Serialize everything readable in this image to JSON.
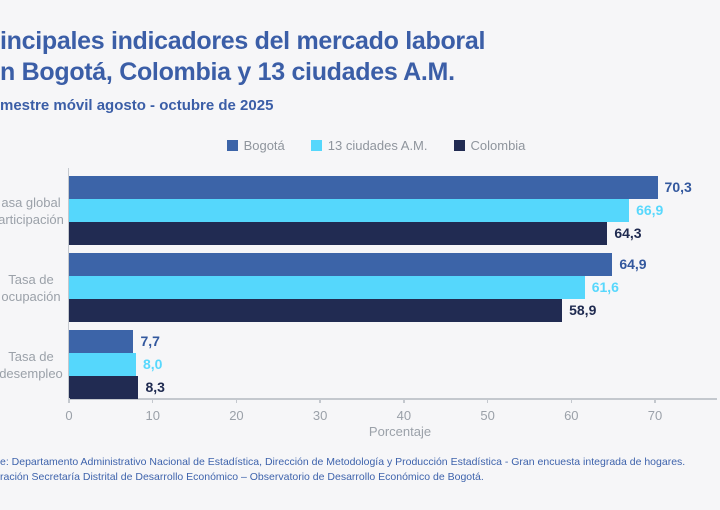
{
  "page": {
    "background": "#F6F6F8"
  },
  "header": {
    "title_line1": "incipales indicadores del mercado laboral",
    "title_line2": "n Bogotá, Colombia y 13 ciudades A.M.",
    "subtitle": "mestre móvil agosto - octubre de 2025",
    "title_color": "#3B5EA7"
  },
  "chart_data": {
    "type": "bar",
    "orientation": "horizontal",
    "categories": [
      [
        "asa global",
        "articipación"
      ],
      [
        "Tasa de",
        "ocupación"
      ],
      [
        "Tasa de",
        "desempleo"
      ]
    ],
    "series": [
      {
        "name": "Bogotá",
        "color": "#3C64A8",
        "label_color": "#33589E",
        "values": [
          70.3,
          64.9,
          7.7
        ],
        "value_labels": [
          "70,3",
          "64,9",
          "7,7"
        ]
      },
      {
        "name": "13 ciudades A.M.",
        "color": "#55D7FC",
        "label_color": "#58D8FD",
        "values": [
          66.9,
          61.6,
          8.0
        ],
        "value_labels": [
          "66,9",
          "61,6",
          "8,0"
        ]
      },
      {
        "name": "Colombia",
        "color": "#212B52",
        "label_color": "#1F2A50",
        "values": [
          64.3,
          58.9,
          8.3
        ],
        "value_labels": [
          "64,3",
          "58,9",
          "8,3"
        ]
      }
    ],
    "xlabel": "Porcentaje",
    "x_ticks": [
      0,
      10,
      20,
      30,
      40,
      50,
      60,
      70
    ],
    "x_tick_labels": [
      "0",
      "10",
      "20",
      "30",
      "40",
      "50",
      "60",
      "70"
    ],
    "xlim": [
      0,
      77.4
    ],
    "grid": false,
    "legend_position": "top",
    "axis_color": "#C4C8CE",
    "tick_text_color": "#9BA1A9"
  },
  "footer": {
    "line1": "e: Departamento Administrativo Nacional de Estadística, Dirección de Metodología y Producción Estadística - Gran encuesta integrada de hogares.",
    "line2": "ración Secretaría Distrital de Desarrollo Económico – Observatorio de Desarrollo Económico de Bogotá."
  }
}
